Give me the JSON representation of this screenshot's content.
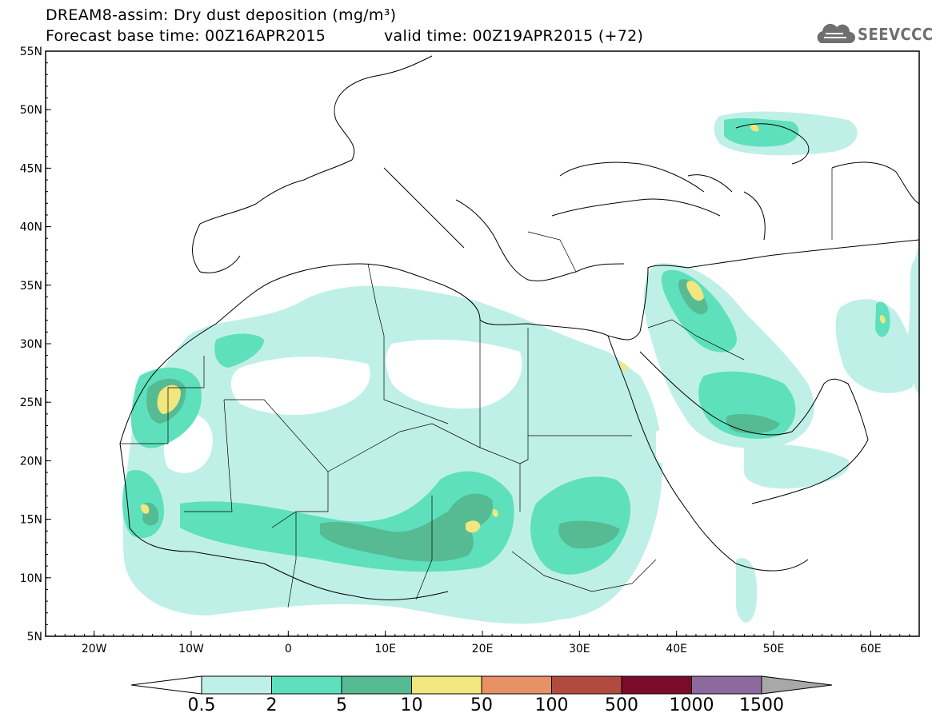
{
  "header": {
    "title_line1": "DREAM8-assim: Dry dust deposition (mg/m³)",
    "title_line2": "Forecast base time: 00Z16APR2015",
    "valid_time": "valid time: 00Z19APR2015 (+72)"
  },
  "logo": {
    "text": "SEEVCCC",
    "icon": "cloud-icon"
  },
  "map": {
    "lon_range": [
      -25,
      65
    ],
    "lat_range": [
      5,
      55
    ],
    "lat_labels": [
      "5N",
      "10N",
      "15N",
      "20N",
      "25N",
      "30N",
      "35N",
      "40N",
      "45N",
      "50N",
      "55N"
    ],
    "lon_labels": [
      "20W",
      "10W",
      "0",
      "10E",
      "20E",
      "30E",
      "40E",
      "50E",
      "60E"
    ]
  },
  "colorbar": {
    "thresholds": [
      "0.5",
      "2",
      "5",
      "10",
      "50",
      "100",
      "500",
      "1000",
      "1500"
    ],
    "colors": [
      "#bff0e8",
      "#5ee0bd",
      "#56bb92",
      "#f2e67e",
      "#e89066",
      "#b14b40",
      "#7a0b2a",
      "#8c6a9e"
    ],
    "under_color": "#ffffff",
    "over_color": "#a8a8a8"
  }
}
